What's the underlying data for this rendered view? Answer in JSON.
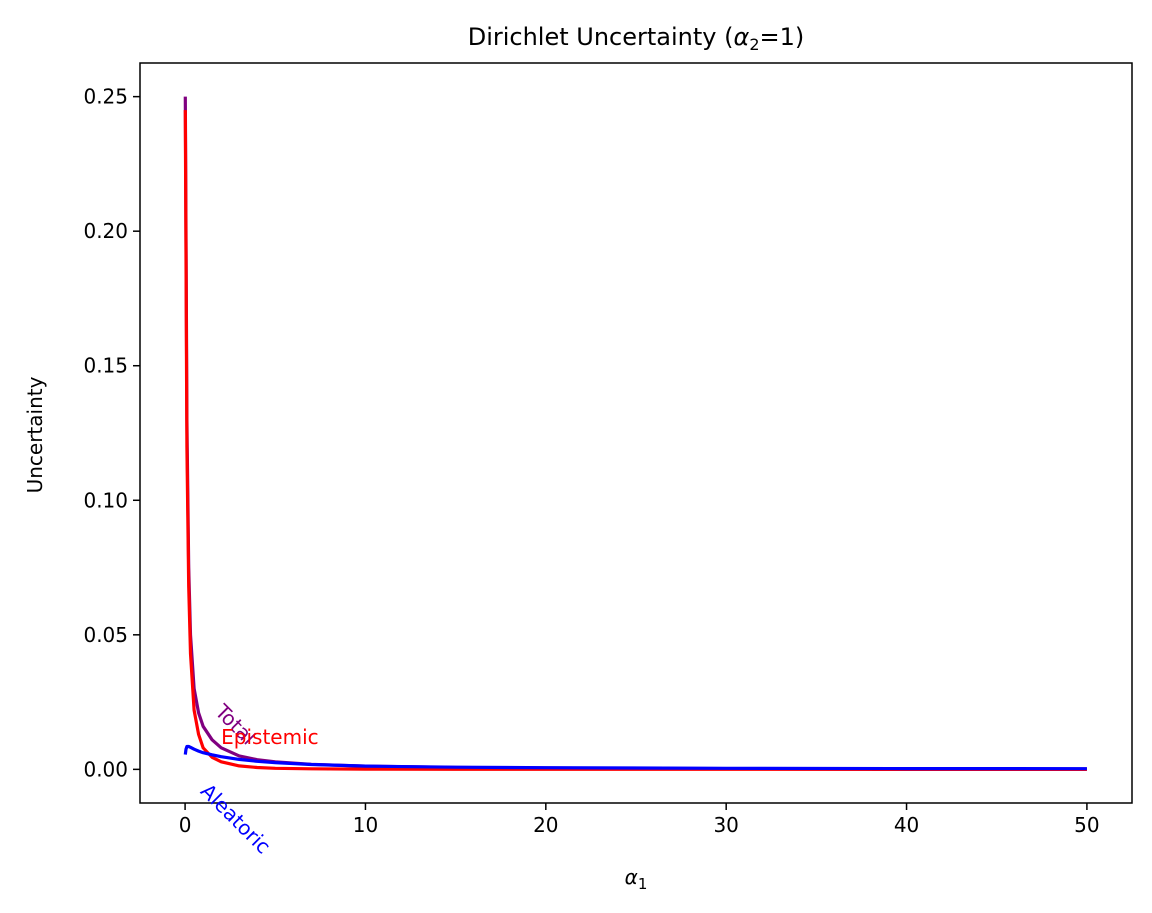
{
  "chart_data": {
    "type": "line",
    "title": "Dirichlet Uncertainty (α₂=1)",
    "title_parts": {
      "prefix": "Dirichlet Uncertainty (",
      "alpha": "α",
      "sub": "2",
      "suffix": "=1)"
    },
    "xlabel": "α₁",
    "xlabel_parts": {
      "alpha": "α",
      "sub": "1"
    },
    "ylabel": "Uncertainty",
    "xlim": [
      -2.5,
      52.5
    ],
    "ylim": [
      -0.0125,
      0.2625
    ],
    "xticks": [
      0,
      10,
      20,
      30,
      40,
      50
    ],
    "xtick_labels": [
      "0",
      "10",
      "20",
      "30",
      "40",
      "50"
    ],
    "yticks": [
      0.0,
      0.05,
      0.1,
      0.15,
      0.2,
      0.25
    ],
    "ytick_labels": [
      "0.00",
      "0.05",
      "0.10",
      "0.15",
      "0.20",
      "0.25"
    ],
    "grid": false,
    "legend": "none",
    "series": [
      {
        "color": "#800080",
        "x": [
          0.01,
          0.05,
          0.1,
          0.2,
          0.3,
          0.5,
          0.75,
          1,
          1.5,
          2,
          3,
          4,
          5,
          7,
          10,
          15,
          20,
          30,
          40,
          50
        ],
        "values": [
          0.25,
          0.2,
          0.13,
          0.075,
          0.05,
          0.03,
          0.021,
          0.016,
          0.011,
          0.008,
          0.005,
          0.0036,
          0.0028,
          0.0019,
          0.0012,
          0.0007,
          0.0005,
          0.0003,
          0.0002,
          0.00015
        ]
      },
      {
        "color": "#ff0000",
        "x": [
          0.01,
          0.05,
          0.1,
          0.2,
          0.3,
          0.5,
          0.75,
          1,
          1.5,
          2,
          3,
          4,
          5,
          7,
          10,
          15,
          20,
          30,
          40,
          50
        ],
        "values": [
          0.245,
          0.19,
          0.12,
          0.068,
          0.043,
          0.022,
          0.013,
          0.008,
          0.0045,
          0.0028,
          0.0013,
          0.0007,
          0.0004,
          0.0002,
          0.0001,
          4e-05,
          2e-05,
          1e-05,
          0.0,
          0.0
        ]
      },
      {
        "color": "#0000ff",
        "x": [
          0.01,
          0.05,
          0.1,
          0.2,
          0.3,
          0.5,
          0.75,
          1,
          1.5,
          2,
          3,
          4,
          5,
          7,
          10,
          15,
          20,
          30,
          40,
          50
        ],
        "values": [
          0.0055,
          0.0075,
          0.0085,
          0.0085,
          0.0082,
          0.0075,
          0.0068,
          0.0062,
          0.0054,
          0.0047,
          0.0037,
          0.003,
          0.0025,
          0.0018,
          0.0012,
          0.0008,
          0.0006,
          0.0004,
          0.0003,
          0.00025
        ]
      }
    ],
    "annotations": [
      {
        "text": "Total",
        "x": 1.6,
        "y": 0.021,
        "rotation": 45,
        "color": "#800080"
      },
      {
        "text": "Epistemic",
        "x": 2.0,
        "y": 0.0095,
        "rotation": 0,
        "color": "#ff0000"
      },
      {
        "text": "Aleatoric",
        "x": 0.8,
        "y": -0.0085,
        "rotation": 45,
        "color": "#0000ff"
      }
    ]
  }
}
